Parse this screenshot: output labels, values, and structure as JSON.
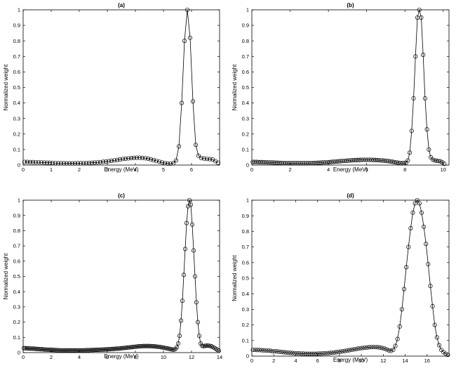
{
  "colors": {
    "line": "#000000",
    "marker": "#000000",
    "background": "#ffffff"
  },
  "chart_data": [
    {
      "type": "line",
      "title": "(a)",
      "xlabel": "Energy (MeV)",
      "ylabel": "Normalized weight",
      "xlim": [
        0,
        7
      ],
      "ylim": [
        0,
        1
      ],
      "xticks": [
        0,
        1,
        2,
        3,
        4,
        5,
        6
      ],
      "yticks": [
        0,
        0.1,
        0.2,
        0.3,
        0.4,
        0.5,
        0.6,
        0.7,
        0.8,
        0.9,
        1
      ],
      "marker": "open-circle",
      "grid": false,
      "series": [
        {
          "x": [
            0.05,
            0.15,
            0.25,
            0.35,
            0.45,
            0.55,
            0.65,
            0.75,
            0.85,
            0.95,
            1.05,
            1.15,
            1.25,
            1.35,
            1.45,
            1.55,
            1.65,
            1.75,
            1.85,
            1.95,
            2.05,
            2.15,
            2.25,
            2.35,
            2.45,
            2.55,
            2.65,
            2.75,
            2.85,
            2.95,
            3.05,
            3.15,
            3.25,
            3.35,
            3.45,
            3.55,
            3.65,
            3.75,
            3.85,
            3.95,
            4.05,
            4.15,
            4.25,
            4.35,
            4.45,
            4.55,
            4.65,
            4.75,
            4.85,
            4.95,
            5.05,
            5.15,
            5.25,
            5.35,
            5.45,
            5.55,
            5.65,
            5.75,
            5.85,
            5.95,
            6.05,
            6.15,
            6.25,
            6.35,
            6.45,
            6.55,
            6.65,
            6.75,
            6.85,
            6.95
          ],
          "y": [
            0.02,
            0.02,
            0.019,
            0.019,
            0.018,
            0.018,
            0.017,
            0.016,
            0.015,
            0.015,
            0.014,
            0.013,
            0.012,
            0.012,
            0.012,
            0.011,
            0.011,
            0.011,
            0.011,
            0.012,
            0.012,
            0.013,
            0.013,
            0.014,
            0.015,
            0.016,
            0.017,
            0.019,
            0.021,
            0.023,
            0.025,
            0.028,
            0.03,
            0.033,
            0.036,
            0.039,
            0.041,
            0.043,
            0.045,
            0.046,
            0.047,
            0.047,
            0.046,
            0.044,
            0.041,
            0.037,
            0.032,
            0.027,
            0.022,
            0.017,
            0.013,
            0.01,
            0.009,
            0.012,
            0.03,
            0.12,
            0.4,
            0.8,
            1.0,
            0.82,
            0.41,
            0.13,
            0.06,
            0.045,
            0.042,
            0.04,
            0.038,
            0.036,
            0.025,
            0.015
          ]
        }
      ]
    },
    {
      "type": "line",
      "title": "(b)",
      "xlabel": "Energy (MeV)",
      "ylabel": "Normalized weight",
      "xlim": [
        0,
        10.3
      ],
      "ylim": [
        0,
        1
      ],
      "xticks": [
        0,
        2,
        4,
        6,
        8,
        10
      ],
      "yticks": [
        0,
        0.1,
        0.2,
        0.3,
        0.4,
        0.5,
        0.6,
        0.7,
        0.8,
        0.9,
        1
      ],
      "marker": "open-circle",
      "grid": false,
      "series": [
        {
          "x": [
            0.05,
            0.15,
            0.25,
            0.35,
            0.45,
            0.55,
            0.65,
            0.75,
            0.85,
            0.95,
            1.05,
            1.15,
            1.25,
            1.35,
            1.45,
            1.55,
            1.65,
            1.75,
            1.85,
            1.95,
            2.05,
            2.15,
            2.25,
            2.35,
            2.45,
            2.55,
            2.65,
            2.75,
            2.85,
            2.95,
            3.05,
            3.15,
            3.25,
            3.35,
            3.45,
            3.55,
            3.65,
            3.75,
            3.85,
            3.95,
            4.05,
            4.15,
            4.25,
            4.35,
            4.45,
            4.55,
            4.65,
            4.75,
            4.85,
            4.95,
            5.05,
            5.15,
            5.25,
            5.35,
            5.45,
            5.55,
            5.65,
            5.75,
            5.85,
            5.95,
            6.05,
            6.15,
            6.25,
            6.35,
            6.45,
            6.55,
            6.65,
            6.75,
            6.85,
            6.95,
            7.05,
            7.15,
            7.25,
            7.35,
            7.45,
            7.55,
            7.65,
            7.75,
            7.85,
            7.95,
            8.05,
            8.15,
            8.25,
            8.35,
            8.45,
            8.55,
            8.65,
            8.75,
            8.85,
            8.95,
            9.05,
            9.15,
            9.25,
            9.35,
            9.45,
            9.55,
            9.65,
            9.75,
            9.85,
            9.95,
            10.05
          ],
          "y": [
            0.02,
            0.02,
            0.02,
            0.019,
            0.019,
            0.019,
            0.018,
            0.018,
            0.017,
            0.017,
            0.016,
            0.016,
            0.015,
            0.015,
            0.014,
            0.014,
            0.013,
            0.013,
            0.013,
            0.012,
            0.012,
            0.012,
            0.012,
            0.012,
            0.012,
            0.012,
            0.012,
            0.012,
            0.012,
            0.012,
            0.013,
            0.013,
            0.014,
            0.014,
            0.015,
            0.015,
            0.016,
            0.017,
            0.017,
            0.018,
            0.019,
            0.02,
            0.021,
            0.022,
            0.023,
            0.024,
            0.025,
            0.026,
            0.027,
            0.028,
            0.029,
            0.03,
            0.031,
            0.032,
            0.032,
            0.033,
            0.033,
            0.034,
            0.034,
            0.034,
            0.034,
            0.034,
            0.034,
            0.033,
            0.033,
            0.032,
            0.031,
            0.03,
            0.029,
            0.028,
            0.026,
            0.025,
            0.023,
            0.021,
            0.019,
            0.017,
            0.015,
            0.013,
            0.012,
            0.012,
            0.015,
            0.03,
            0.08,
            0.22,
            0.43,
            0.7,
            0.95,
            1.0,
            0.95,
            0.71,
            0.43,
            0.23,
            0.1,
            0.05,
            0.035,
            0.03,
            0.028,
            0.026,
            0.024,
            0.018,
            0.008
          ]
        }
      ]
    },
    {
      "type": "line",
      "title": "(c)",
      "xlabel": "Energy (MeV)",
      "ylabel": "Normalized weight",
      "xlim": [
        0,
        14
      ],
      "ylim": [
        0,
        1
      ],
      "xticks": [
        0,
        2,
        4,
        6,
        8,
        10,
        12,
        14
      ],
      "yticks": [
        0,
        0.1,
        0.2,
        0.3,
        0.4,
        0.5,
        0.6,
        0.7,
        0.8,
        0.9,
        1
      ],
      "marker": "open-circle",
      "grid": false,
      "series": [
        {
          "x": [
            0.05,
            0.15,
            0.25,
            0.35,
            0.45,
            0.55,
            0.65,
            0.75,
            0.85,
            0.95,
            1.05,
            1.15,
            1.25,
            1.35,
            1.45,
            1.55,
            1.65,
            1.75,
            1.85,
            1.95,
            2.05,
            2.15,
            2.25,
            2.35,
            2.45,
            2.55,
            2.65,
            2.75,
            2.85,
            2.95,
            3.05,
            3.15,
            3.25,
            3.35,
            3.45,
            3.55,
            3.65,
            3.75,
            3.85,
            3.95,
            4.05,
            4.15,
            4.25,
            4.35,
            4.45,
            4.55,
            4.65,
            4.75,
            4.85,
            4.95,
            5.05,
            5.15,
            5.25,
            5.35,
            5.45,
            5.55,
            5.65,
            5.75,
            5.85,
            5.95,
            6.05,
            6.15,
            6.25,
            6.35,
            6.45,
            6.55,
            6.65,
            6.75,
            6.85,
            6.95,
            7.05,
            7.15,
            7.25,
            7.35,
            7.45,
            7.55,
            7.65,
            7.75,
            7.85,
            7.95,
            8.05,
            8.15,
            8.25,
            8.35,
            8.45,
            8.55,
            8.65,
            8.75,
            8.85,
            8.95,
            9.05,
            9.15,
            9.25,
            9.35,
            9.45,
            9.55,
            9.65,
            9.75,
            9.85,
            9.95,
            10.05,
            10.15,
            10.25,
            10.35,
            10.45,
            10.55,
            10.65,
            10.75,
            10.85,
            10.95,
            11.05,
            11.15,
            11.25,
            11.35,
            11.45,
            11.55,
            11.65,
            11.75,
            11.85,
            11.95,
            12.05,
            12.15,
            12.25,
            12.35,
            12.45,
            12.55,
            12.65,
            12.75,
            12.85,
            12.95,
            13.05,
            13.15,
            13.25,
            13.35,
            13.45,
            13.55,
            13.65,
            13.75,
            13.85,
            13.95
          ],
          "y": [
            0.029,
            0.029,
            0.028,
            0.028,
            0.027,
            0.027,
            0.026,
            0.026,
            0.025,
            0.024,
            0.024,
            0.023,
            0.022,
            0.022,
            0.021,
            0.02,
            0.02,
            0.019,
            0.019,
            0.018,
            0.018,
            0.017,
            0.017,
            0.016,
            0.016,
            0.016,
            0.015,
            0.015,
            0.015,
            0.015,
            0.015,
            0.015,
            0.014,
            0.014,
            0.014,
            0.014,
            0.014,
            0.014,
            0.015,
            0.015,
            0.015,
            0.015,
            0.015,
            0.015,
            0.016,
            0.016,
            0.016,
            0.016,
            0.017,
            0.017,
            0.017,
            0.018,
            0.018,
            0.018,
            0.019,
            0.019,
            0.02,
            0.02,
            0.021,
            0.021,
            0.022,
            0.022,
            0.023,
            0.024,
            0.024,
            0.025,
            0.026,
            0.026,
            0.027,
            0.028,
            0.029,
            0.03,
            0.031,
            0.032,
            0.033,
            0.034,
            0.035,
            0.036,
            0.037,
            0.038,
            0.039,
            0.04,
            0.041,
            0.042,
            0.042,
            0.043,
            0.043,
            0.043,
            0.043,
            0.043,
            0.043,
            0.042,
            0.042,
            0.041,
            0.04,
            0.039,
            0.038,
            0.037,
            0.035,
            0.034,
            0.032,
            0.03,
            0.028,
            0.026,
            0.024,
            0.022,
            0.02,
            0.02,
            0.023,
            0.035,
            0.06,
            0.11,
            0.21,
            0.34,
            0.51,
            0.68,
            0.85,
            0.96,
            1.0,
            0.97,
            0.84,
            0.67,
            0.5,
            0.33,
            0.2,
            0.11,
            0.06,
            0.045,
            0.042,
            0.044,
            0.046,
            0.046,
            0.045,
            0.043,
            0.04,
            0.035,
            0.03,
            0.024,
            0.018,
            0.012
          ]
        }
      ]
    },
    {
      "type": "line",
      "title": "(d)",
      "xlabel": "Energy (MeV)",
      "ylabel": "Normalized weight",
      "xlim": [
        0,
        18
      ],
      "ylim": [
        0,
        1
      ],
      "xticks": [
        0,
        2,
        4,
        6,
        8,
        10,
        12,
        14,
        16
      ],
      "yticks": [
        0,
        0.1,
        0.2,
        0.3,
        0.4,
        0.5,
        0.6,
        0.7,
        0.8,
        0.9,
        1
      ],
      "marker": "open-circle",
      "grid": false,
      "series": [
        {
          "x": [
            0.1,
            0.3,
            0.5,
            0.7,
            0.9,
            1.1,
            1.3,
            1.5,
            1.7,
            1.9,
            2.1,
            2.3,
            2.5,
            2.7,
            2.9,
            3.1,
            3.3,
            3.5,
            3.7,
            3.9,
            4.1,
            4.3,
            4.5,
            4.7,
            4.9,
            5.1,
            5.3,
            5.5,
            5.7,
            5.9,
            6.1,
            6.3,
            6.5,
            6.7,
            6.9,
            7.1,
            7.3,
            7.5,
            7.7,
            7.9,
            8.1,
            8.3,
            8.5,
            8.7,
            8.9,
            9.1,
            9.3,
            9.5,
            9.7,
            9.9,
            10.1,
            10.3,
            10.5,
            10.7,
            10.9,
            11.1,
            11.3,
            11.5,
            11.7,
            11.9,
            12.1,
            12.3,
            12.5,
            12.7,
            12.9,
            13.1,
            13.3,
            13.5,
            13.7,
            13.9,
            14.1,
            14.3,
            14.5,
            14.7,
            14.9,
            15.1,
            15.3,
            15.5,
            15.7,
            15.9,
            16.1,
            16.3,
            16.5,
            16.7,
            16.9,
            17.1,
            17.3,
            17.5,
            17.7,
            17.9
          ],
          "y": [
            0.04,
            0.04,
            0.039,
            0.039,
            0.038,
            0.037,
            0.036,
            0.035,
            0.034,
            0.032,
            0.031,
            0.03,
            0.028,
            0.027,
            0.025,
            0.024,
            0.022,
            0.021,
            0.02,
            0.019,
            0.018,
            0.017,
            0.016,
            0.016,
            0.015,
            0.015,
            0.015,
            0.015,
            0.015,
            0.015,
            0.016,
            0.016,
            0.017,
            0.018,
            0.019,
            0.02,
            0.022,
            0.023,
            0.025,
            0.027,
            0.029,
            0.031,
            0.033,
            0.036,
            0.038,
            0.041,
            0.043,
            0.045,
            0.048,
            0.05,
            0.052,
            0.054,
            0.055,
            0.057,
            0.058,
            0.058,
            0.058,
            0.057,
            0.055,
            0.052,
            0.048,
            0.043,
            0.037,
            0.034,
            0.04,
            0.065,
            0.11,
            0.19,
            0.3,
            0.43,
            0.57,
            0.7,
            0.82,
            0.92,
            0.98,
            1.0,
            0.98,
            0.92,
            0.83,
            0.72,
            0.59,
            0.45,
            0.32,
            0.2,
            0.12,
            0.07,
            0.04,
            0.025,
            0.015,
            0.008
          ]
        }
      ]
    }
  ]
}
